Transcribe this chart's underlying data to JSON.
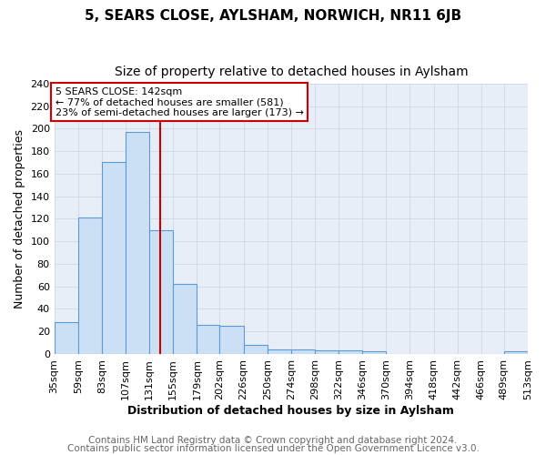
{
  "title": "5, SEARS CLOSE, AYLSHAM, NORWICH, NR11 6JB",
  "subtitle": "Size of property relative to detached houses in Aylsham",
  "xlabel": "Distribution of detached houses by size in Aylsham",
  "ylabel": "Number of detached properties",
  "bin_edges": [
    35,
    59,
    83,
    107,
    131,
    155,
    179,
    202,
    226,
    250,
    274,
    298,
    322,
    346,
    370,
    394,
    418,
    442,
    466,
    489,
    513
  ],
  "bin_counts": [
    28,
    121,
    170,
    197,
    110,
    62,
    26,
    25,
    8,
    4,
    4,
    3,
    3,
    2,
    0,
    0,
    0,
    0,
    0,
    2
  ],
  "bar_face_color": "#cce0f5",
  "bar_edge_color": "#5b9bd5",
  "vline_x": 142,
  "vline_color": "#cc0000",
  "annotation_text": "5 SEARS CLOSE: 142sqm\n← 77% of detached houses are smaller (581)\n23% of semi-detached houses are larger (173) →",
  "annotation_box_color": "#ffffff",
  "annotation_box_edge": "#cc0000",
  "ylim": [
    0,
    240
  ],
  "yticks": [
    0,
    20,
    40,
    60,
    80,
    100,
    120,
    140,
    160,
    180,
    200,
    220,
    240
  ],
  "tick_labels": [
    "35sqm",
    "59sqm",
    "83sqm",
    "107sqm",
    "131sqm",
    "155sqm",
    "179sqm",
    "202sqm",
    "226sqm",
    "250sqm",
    "274sqm",
    "298sqm",
    "322sqm",
    "346sqm",
    "370sqm",
    "394sqm",
    "418sqm",
    "442sqm",
    "466sqm",
    "489sqm",
    "513sqm"
  ],
  "footer_line1": "Contains HM Land Registry data © Crown copyright and database right 2024.",
  "footer_line2": "Contains public sector information licensed under the Open Government Licence v3.0.",
  "grid_color": "#d0daea",
  "background_color": "#ffffff",
  "plot_bg_color": "#e8eef8",
  "title_fontsize": 11,
  "subtitle_fontsize": 10,
  "axis_label_fontsize": 9,
  "tick_fontsize": 8,
  "footer_fontsize": 7.5
}
